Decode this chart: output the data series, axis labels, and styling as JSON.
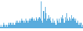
{
  "values": [
    1,
    2,
    1,
    2,
    3,
    2,
    1,
    2,
    1,
    2,
    3,
    2,
    3,
    2,
    3,
    2,
    3,
    2,
    3,
    4,
    3,
    4,
    3,
    4,
    3,
    4,
    5,
    4,
    3,
    4,
    3,
    5,
    4,
    3,
    4,
    5,
    4,
    5,
    6,
    5,
    4,
    5,
    4,
    6,
    5,
    4,
    5,
    6,
    5,
    14,
    4,
    3,
    9,
    5,
    11,
    8,
    4,
    5,
    7,
    5,
    6,
    4,
    3,
    5,
    3,
    4,
    3,
    2,
    5,
    4,
    3,
    5,
    3,
    6,
    5,
    7,
    5,
    3,
    6,
    4,
    8,
    5,
    4,
    6,
    5,
    4,
    7,
    5,
    6,
    5,
    4,
    5,
    3,
    4,
    2,
    3,
    2,
    3,
    1,
    2
  ],
  "bar_color": "#5aacdd",
  "background_color": "#ffffff",
  "ylim_min": 0
}
